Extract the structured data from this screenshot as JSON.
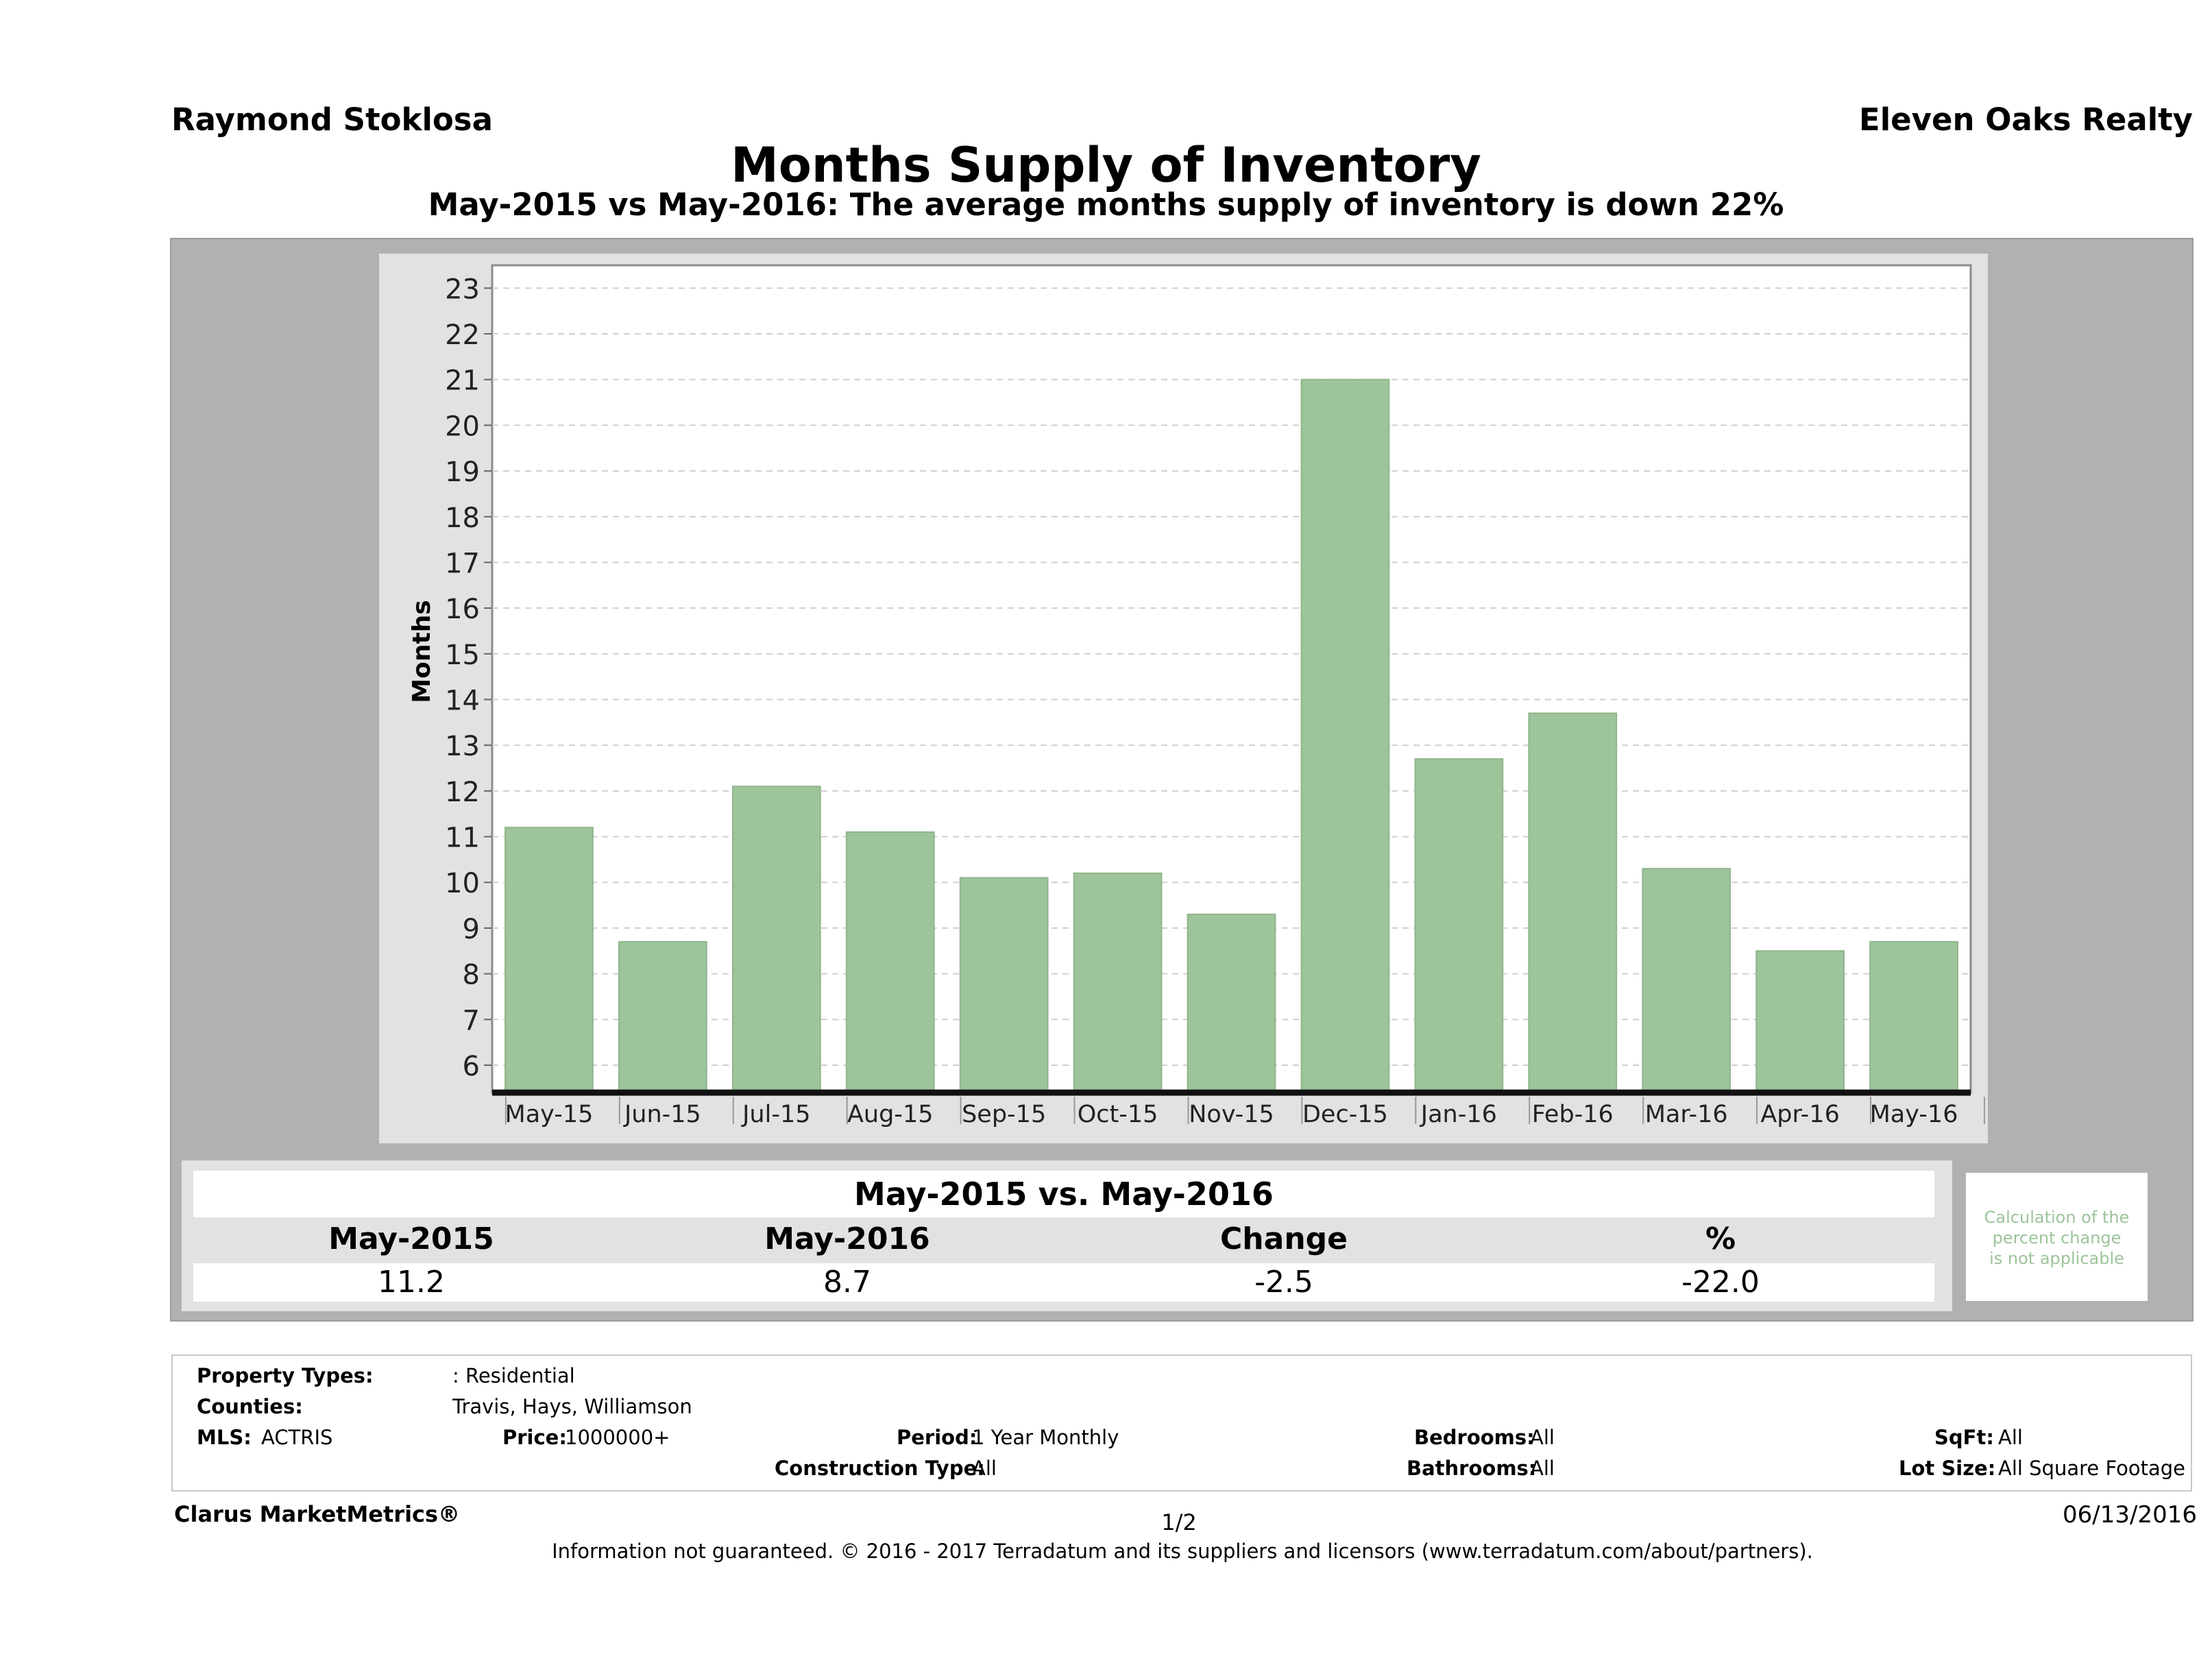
{
  "header": {
    "agent": "Raymond Stoklosa",
    "company": "Eleven Oaks Realty",
    "title": "Months Supply of Inventory",
    "subtitle": "May-2015 vs May-2016: The average months supply of inventory is down 22%"
  },
  "chart_data": {
    "type": "bar",
    "categories": [
      "May-15",
      "Jun-15",
      "Jul-15",
      "Aug-15",
      "Sep-15",
      "Oct-15",
      "Nov-15",
      "Dec-15",
      "Jan-16",
      "Feb-16",
      "Mar-16",
      "Apr-16",
      "May-16"
    ],
    "values": [
      11.2,
      8.7,
      12.1,
      11.1,
      10.1,
      10.2,
      9.3,
      21.0,
      12.7,
      13.7,
      10.3,
      8.5,
      8.7
    ],
    "ylabel": "Months",
    "ylim": [
      5.4,
      23.5
    ],
    "yticks": [
      "6",
      "7",
      "8",
      "9",
      "10",
      "11",
      "12",
      "13",
      "14",
      "15",
      "16",
      "17",
      "18",
      "19",
      "20",
      "21",
      "22",
      "23"
    ],
    "bar_color": "#9dc49a",
    "grid": true
  },
  "summary": {
    "heading": "May-2015 vs. May-2016",
    "col1_label": "May-2015",
    "col2_label": "May-2016",
    "col3_label": "Change",
    "col4_label": "%",
    "col1_value": "11.2",
    "col2_value": "8.7",
    "col3_value": "-2.5",
    "col4_value": "-22.0",
    "note_line1": "Calculation of the",
    "note_line2": "percent change",
    "note_line3": "is not applicable"
  },
  "criteria": {
    "property_types_label": "Property Types:",
    "property_types_value": ": Residential",
    "counties_label": "Counties:",
    "counties_value": "Travis, Hays, Williamson",
    "mls_label": "MLS:",
    "mls_value": "ACTRIS",
    "price_label": "Price:",
    "price_value": "1000000+",
    "period_label": "Period:",
    "period_value": "1 Year Monthly",
    "construction_label": "Construction Type:",
    "construction_value": "All",
    "bedrooms_label": "Bedrooms:",
    "bedrooms_value": "All",
    "bathrooms_label": "Bathrooms:",
    "bathrooms_value": "All",
    "sqft_label": "SqFt:",
    "sqft_value": "All",
    "lot_label": "Lot Size:",
    "lot_value": "All Square Footage"
  },
  "footer": {
    "brand": "Clarus MarketMetrics®",
    "page": "1/2",
    "date": "06/13/2016",
    "disclaimer": "Information not guaranteed. © 2016 - 2017 Terradatum and its suppliers and licensors (www.terradatum.com/about/partners)."
  }
}
